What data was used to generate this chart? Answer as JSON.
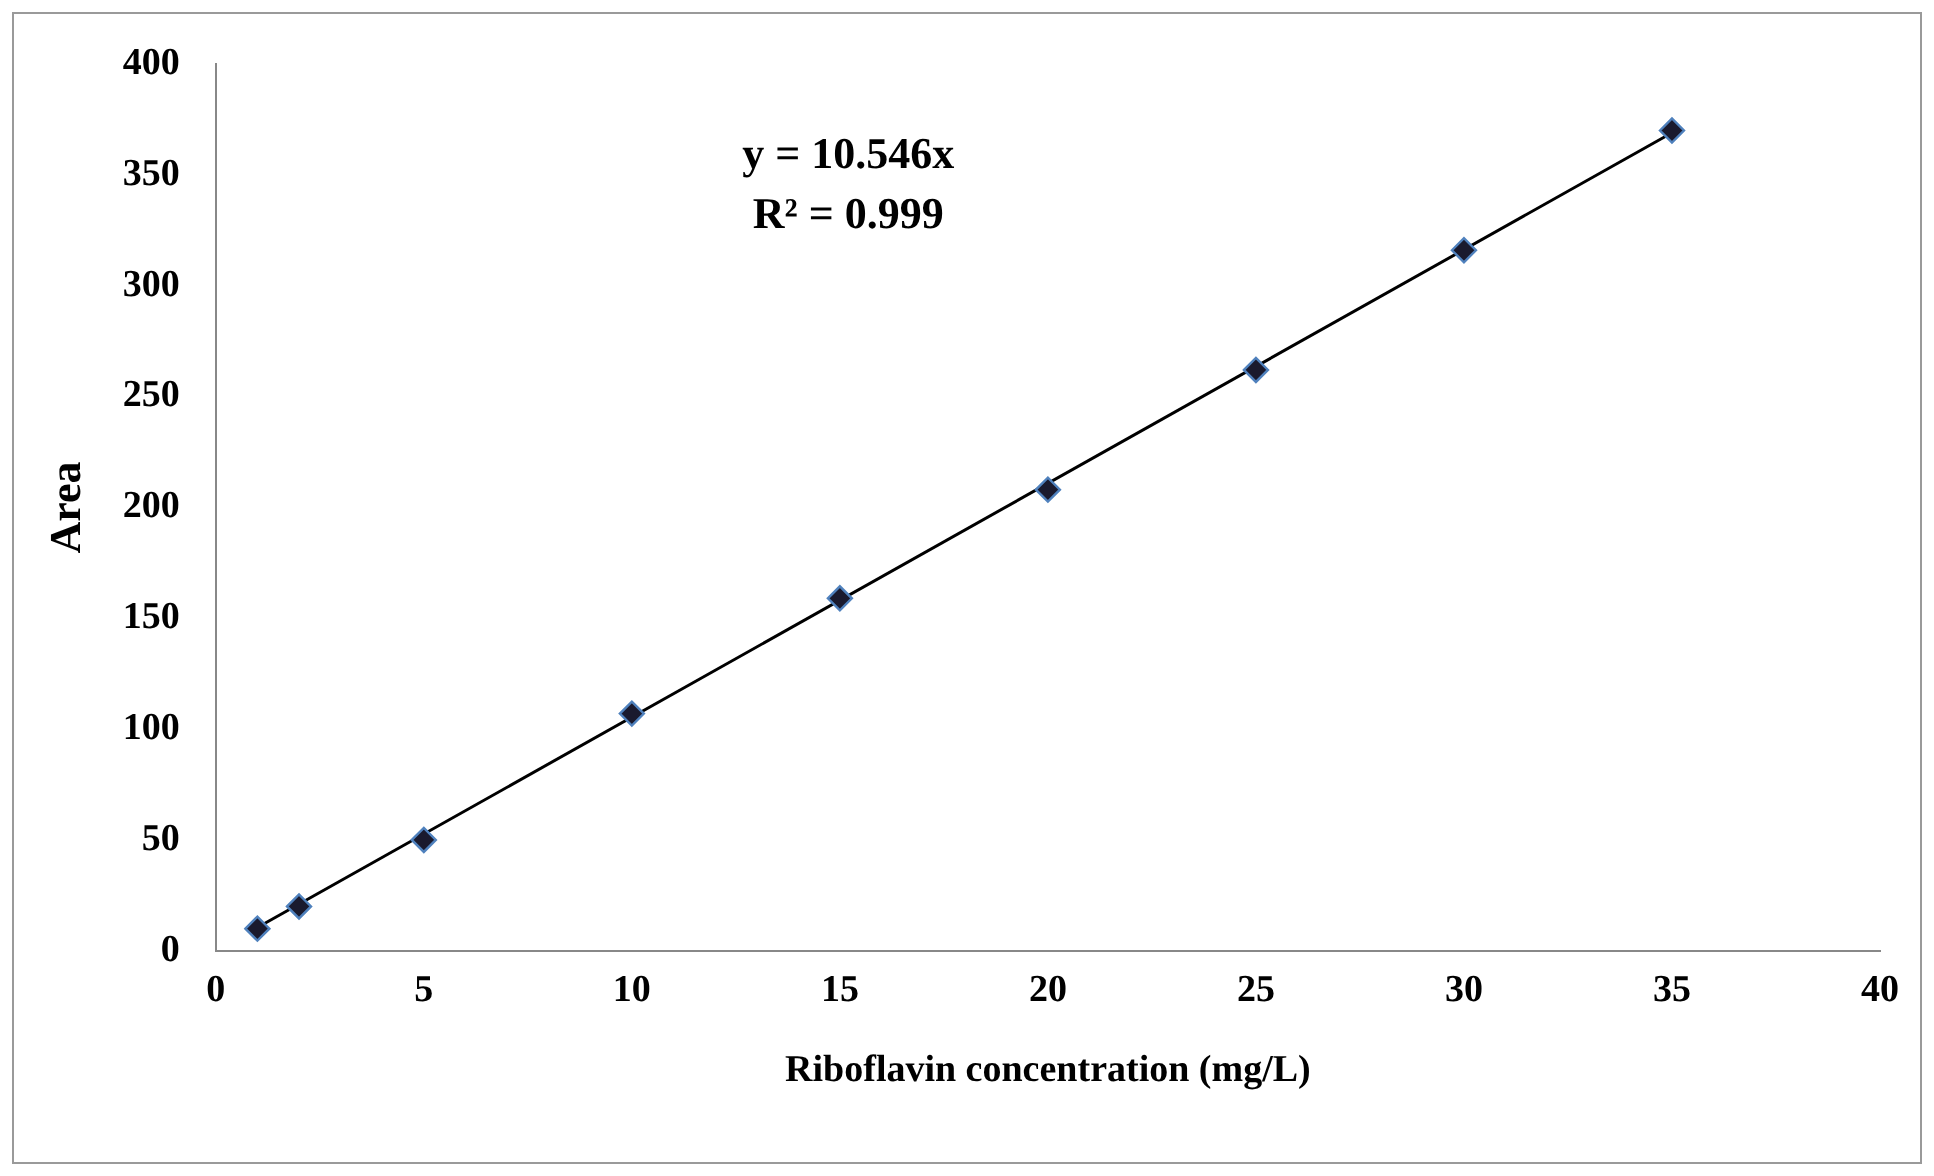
{
  "chart_data": {
    "type": "scatter",
    "xlabel": "Riboflavin concentration (mg/L)",
    "ylabel": "Area",
    "annotations": [
      "y = 10.546x",
      "R² = 0.999"
    ],
    "xlim": [
      0,
      40
    ],
    "xticks": [
      0,
      5,
      10,
      15,
      20,
      25,
      30,
      35,
      40
    ],
    "ylim": [
      0,
      400
    ],
    "yticks": [
      0,
      50,
      100,
      150,
      200,
      250,
      300,
      350,
      400
    ],
    "grid": false,
    "legend": false,
    "marker": "diamond",
    "series": [
      {
        "type": "scatter",
        "color": "#1a1a2e",
        "x": [
          1,
          2,
          5,
          10,
          15,
          20,
          25,
          30,
          35
        ],
        "values": [
          10,
          20,
          50,
          107,
          159,
          208,
          262,
          316,
          370
        ]
      },
      {
        "type": "line",
        "color": "#000000",
        "marker": "none",
        "line_style": "solid",
        "x": [
          1,
          35
        ],
        "values": [
          10.5,
          369
        ]
      }
    ]
  }
}
